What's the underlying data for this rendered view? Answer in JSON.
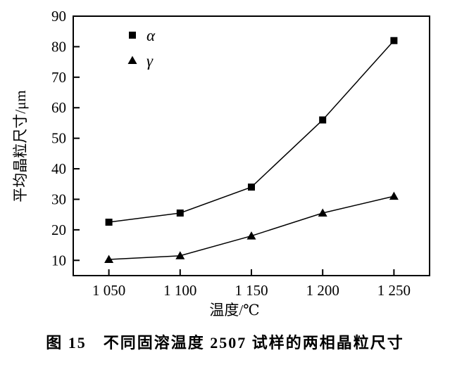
{
  "figure": {
    "caption": "图 15　不同固溶温度 2507 试样的两相晶粒尺寸"
  },
  "chart_data": {
    "type": "line",
    "x": [
      1050,
      1100,
      1150,
      1200,
      1250
    ],
    "xtick_labels": [
      "1 050",
      "1 100",
      "1 150",
      "1 200",
      "1 250"
    ],
    "series": [
      {
        "name": "α",
        "marker": "square",
        "values": [
          22.5,
          25.5,
          34,
          56,
          82
        ]
      },
      {
        "name": "γ",
        "marker": "triangle",
        "values": [
          10.3,
          11.5,
          18,
          25.5,
          31
        ]
      }
    ],
    "xlabel": "温度/℃",
    "ylabel": "平均晶粒尺寸/μm",
    "xlim": [
      1025,
      1275
    ],
    "ylim": [
      5,
      90
    ],
    "yticks": [
      10,
      20,
      30,
      40,
      50,
      60,
      70,
      80,
      90
    ],
    "ytick_labels": [
      "10",
      "20",
      "30",
      "40",
      "50",
      "60",
      "70",
      "80",
      "90"
    ],
    "legend": [
      "α",
      "γ"
    ],
    "legend_position": "upper-left-inside",
    "grid": false,
    "colors": {
      "line": "#000000",
      "marker": "#000000",
      "axis": "#000000",
      "text": "#000000",
      "background": "#ffffff"
    }
  }
}
